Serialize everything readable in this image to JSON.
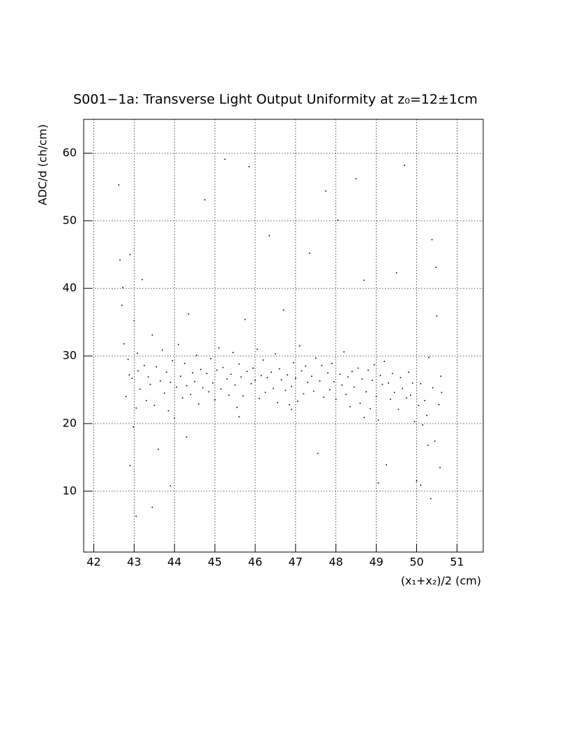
{
  "chart_data": {
    "type": "scatter",
    "title": "S001−1a: Transverse Light Output Uniformity at z₀=12±1cm",
    "x_label": "(x₁+x₂)/2 (cm)",
    "y_label": "ADC/d (ch/cm)",
    "xlim": [
      41.75,
      51.65
    ],
    "ylim": [
      1,
      65
    ],
    "xticks": [
      42,
      43,
      44,
      45,
      46,
      47,
      48,
      49,
      50,
      51
    ],
    "yticks": [
      10,
      20,
      30,
      40,
      50,
      60
    ],
    "grid": true,
    "color": "#000000",
    "x": [
      42.65,
      42.7,
      42.75,
      42.8,
      42.85,
      42.9,
      42.95,
      43.0,
      43.05,
      43.1,
      42.62,
      42.72,
      42.88,
      42.98,
      43.08,
      43.15,
      43.2,
      43.25,
      43.3,
      43.35,
      43.4,
      43.45,
      43.5,
      43.55,
      43.6,
      43.65,
      43.7,
      43.75,
      43.8,
      43.85,
      43.9,
      43.95,
      44.0,
      44.05,
      44.1,
      44.15,
      44.2,
      44.25,
      44.3,
      44.35,
      44.4,
      44.45,
      44.5,
      44.55,
      44.6,
      44.65,
      44.7,
      44.75,
      44.8,
      44.85,
      44.9,
      44.95,
      45.0,
      45.05,
      45.1,
      45.15,
      45.2,
      45.25,
      45.3,
      45.35,
      45.4,
      45.45,
      45.5,
      45.55,
      45.6,
      45.65,
      45.7,
      45.75,
      45.8,
      45.85,
      45.9,
      45.95,
      46.0,
      46.05,
      46.1,
      46.15,
      46.2,
      46.25,
      46.3,
      46.35,
      46.4,
      46.45,
      46.5,
      46.55,
      46.6,
      46.65,
      46.7,
      46.75,
      46.8,
      46.85,
      46.9,
      46.95,
      47.0,
      47.05,
      47.1,
      47.15,
      47.2,
      47.25,
      47.3,
      47.35,
      47.4,
      47.45,
      47.5,
      47.55,
      47.6,
      47.65,
      47.7,
      47.75,
      47.8,
      47.85,
      47.9,
      47.95,
      48.0,
      48.05,
      48.1,
      48.15,
      48.2,
      48.25,
      48.3,
      48.35,
      48.4,
      48.45,
      48.5,
      48.55,
      48.6,
      48.65,
      48.7,
      48.75,
      48.8,
      48.85,
      48.9,
      48.95,
      49.0,
      49.05,
      49.1,
      49.15,
      49.2,
      49.25,
      49.3,
      49.35,
      49.4,
      49.45,
      49.5,
      49.55,
      49.6,
      49.65,
      49.7,
      49.75,
      49.8,
      49.85,
      49.9,
      49.95,
      50.0,
      50.05,
      50.1,
      50.15,
      50.2,
      50.25,
      50.3,
      50.35,
      50.4,
      50.45,
      50.5,
      50.55,
      50.6,
      50.62,
      50.58,
      50.48,
      50.38,
      50.28,
      43.05,
      43.45,
      43.9,
      44.3,
      45.6,
      46.9,
      48.7,
      49.05,
      50.1,
      42.9
    ],
    "values": [
      44.2,
      37.5,
      31.8,
      24.0,
      29.5,
      45.0,
      26.7,
      35.2,
      22.3,
      27.8,
      55.3,
      40.1,
      27.2,
      19.5,
      30.4,
      25.1,
      41.3,
      28.6,
      23.4,
      26.9,
      25.8,
      33.1,
      22.7,
      28.4,
      16.2,
      26.3,
      30.9,
      24.5,
      27.6,
      21.9,
      26.1,
      29.3,
      20.8,
      25.4,
      31.7,
      27.0,
      23.8,
      28.9,
      25.6,
      36.2,
      24.3,
      27.5,
      26.2,
      30.1,
      22.9,
      28.0,
      25.3,
      53.1,
      27.4,
      24.7,
      29.6,
      26.0,
      23.5,
      27.9,
      31.2,
      25.1,
      28.3,
      59.1,
      26.6,
      24.2,
      27.3,
      30.5,
      25.7,
      22.4,
      28.8,
      26.9,
      24.1,
      35.4,
      27.7,
      58.0,
      25.9,
      28.2,
      26.4,
      31.0,
      23.7,
      27.1,
      29.4,
      24.6,
      26.8,
      47.8,
      27.6,
      25.2,
      30.3,
      23.1,
      28.1,
      26.5,
      36.8,
      24.9,
      27.2,
      22.8,
      25.5,
      29.0,
      26.7,
      23.3,
      31.5,
      27.8,
      24.4,
      28.5,
      26.1,
      45.2,
      27.0,
      24.8,
      29.7,
      15.6,
      26.3,
      28.6,
      23.9,
      54.4,
      27.5,
      25.0,
      28.9,
      26.2,
      23.6,
      50.1,
      27.3,
      25.7,
      30.6,
      24.3,
      26.9,
      22.5,
      27.7,
      25.4,
      56.2,
      28.2,
      23.0,
      26.6,
      41.2,
      24.7,
      27.9,
      22.2,
      26.4,
      28.7,
      24.0,
      20.5,
      27.1,
      25.8,
      29.2,
      13.9,
      26.0,
      23.6,
      27.4,
      24.6,
      42.3,
      22.1,
      26.8,
      25.2,
      58.2,
      23.8,
      27.6,
      24.2,
      26.0,
      20.3,
      11.5,
      22.7,
      25.9,
      19.8,
      23.4,
      21.2,
      29.8,
      8.9,
      25.3,
      17.4,
      35.9,
      22.8,
      27.0,
      24.6,
      13.5,
      43.1,
      47.2,
      16.8,
      6.3,
      7.6,
      10.8,
      18.0,
      21.0,
      22.1,
      20.9,
      11.2,
      10.9,
      13.8
    ]
  }
}
